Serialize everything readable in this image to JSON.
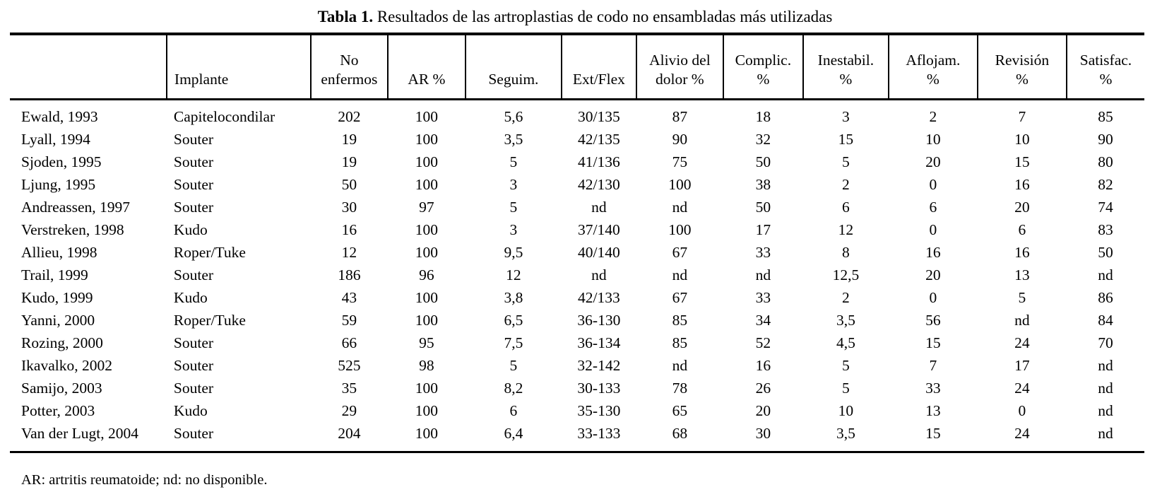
{
  "page": {
    "title_bold": "Tabla 1.",
    "title_rest": " Resultados de las artroplastias de codo no ensambladas más utilizadas",
    "footnote": "AR: artritis reumatoide; nd: no disponible."
  },
  "table": {
    "columns": [
      {
        "id": "study",
        "label": ""
      },
      {
        "id": "implante",
        "label": "Implante"
      },
      {
        "id": "no_enfermos",
        "label": "No\nenfermos"
      },
      {
        "id": "ar_pct",
        "label": "AR %"
      },
      {
        "id": "seguimiento",
        "label": "Seguim."
      },
      {
        "id": "ext_flex",
        "label": "Ext/Flex"
      },
      {
        "id": "alivio_dolor_pct",
        "label": "Alivio del\ndolor %"
      },
      {
        "id": "complicaciones_pct",
        "label": "Complic.\n%"
      },
      {
        "id": "inestabilidad_pct",
        "label": "Inestabil.\n%"
      },
      {
        "id": "aflojamiento_pct",
        "label": "Aflojam.\n%"
      },
      {
        "id": "revision_pct",
        "label": "Revisión\n%"
      },
      {
        "id": "satisfaccion_pct",
        "label": "Satisfac.\n%"
      }
    ],
    "rows": [
      [
        "Ewald, 1993",
        "Capitelocondilar",
        "202",
        "100",
        "5,6",
        "30/135",
        "87",
        "18",
        "3",
        "2",
        "7",
        "85"
      ],
      [
        "Lyall, 1994",
        "Souter",
        "19",
        "100",
        "3,5",
        "42/135",
        "90",
        "32",
        "15",
        "10",
        "10",
        "90"
      ],
      [
        "Sjoden, 1995",
        "Souter",
        "19",
        "100",
        "5",
        "41/136",
        "75",
        "50",
        "5",
        "20",
        "15",
        "80"
      ],
      [
        "Ljung, 1995",
        "Souter",
        "50",
        "100",
        "3",
        "42/130",
        "100",
        "38",
        "2",
        "0",
        "16",
        "82"
      ],
      [
        "Andreassen, 1997",
        "Souter",
        "30",
        "97",
        "5",
        "nd",
        "nd",
        "50",
        "6",
        "6",
        "20",
        "74"
      ],
      [
        "Verstreken, 1998",
        "Kudo",
        "16",
        "100",
        "3",
        "37/140",
        "100",
        "17",
        "12",
        "0",
        "6",
        "83"
      ],
      [
        "Allieu, 1998",
        "Roper/Tuke",
        "12",
        "100",
        "9,5",
        "40/140",
        "67",
        "33",
        "8",
        "16",
        "16",
        "50"
      ],
      [
        "Trail, 1999",
        "Souter",
        "186",
        "96",
        "12",
        "nd",
        "nd",
        "nd",
        "12,5",
        "20",
        "13",
        "nd"
      ],
      [
        "Kudo, 1999",
        "Kudo",
        "43",
        "100",
        "3,8",
        "42/133",
        "67",
        "33",
        "2",
        "0",
        "5",
        "86"
      ],
      [
        "Yanni, 2000",
        "Roper/Tuke",
        "59",
        "100",
        "6,5",
        "36-130",
        "85",
        "34",
        "3,5",
        "56",
        "nd",
        "84"
      ],
      [
        "Rozing, 2000",
        "Souter",
        "66",
        "95",
        "7,5",
        "36-134",
        "85",
        "52",
        "4,5",
        "15",
        "24",
        "70"
      ],
      [
        "Ikavalko, 2002",
        "Souter",
        "525",
        "98",
        "5",
        "32-142",
        "nd",
        "16",
        "5",
        "7",
        "17",
        "nd"
      ],
      [
        "Samijo, 2003",
        "Souter",
        "35",
        "100",
        "8,2",
        "30-133",
        "78",
        "26",
        "5",
        "33",
        "24",
        "nd"
      ],
      [
        "Potter, 2003",
        "Kudo",
        "29",
        "100",
        "6",
        "35-130",
        "65",
        "20",
        "10",
        "13",
        "0",
        "nd"
      ],
      [
        "Van der Lugt, 2004",
        "Souter",
        "204",
        "100",
        "6,4",
        "33-133",
        "68",
        "30",
        "3,5",
        "15",
        "24",
        "nd"
      ]
    ]
  }
}
